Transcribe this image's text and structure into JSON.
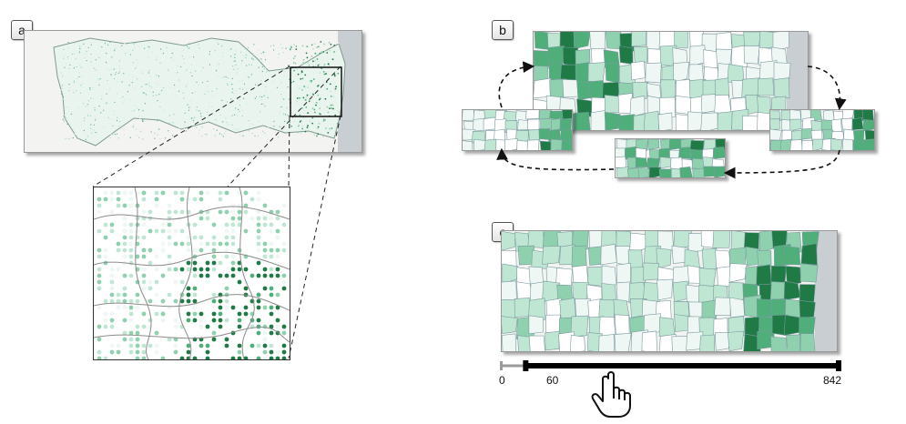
{
  "panels": {
    "a": {
      "label": "a"
    },
    "b": {
      "label": "b"
    },
    "c": {
      "label": "c"
    }
  },
  "slider": {
    "min_label": "0",
    "low_label": "60",
    "high_label": "842",
    "min": 0,
    "low": 60,
    "high": 842
  },
  "icons": {
    "pointer": "hand-pointer-icon"
  },
  "colors": {
    "dark_green": "#1f7a45",
    "mid_green": "#4fae7a",
    "light_green": "#bfe6d2",
    "pale": "#eef7f3",
    "ocean": "#c9ced2",
    "boundary": "#8a9aa0"
  }
}
